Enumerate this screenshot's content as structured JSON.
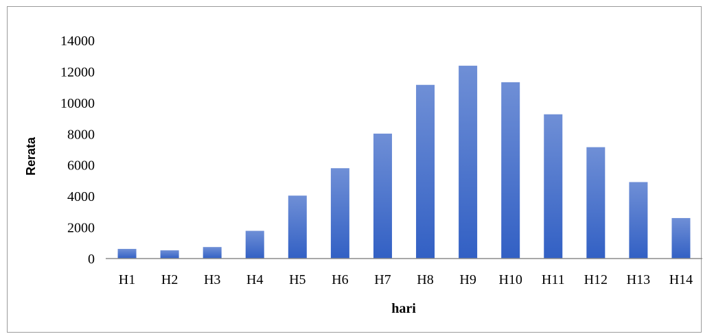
{
  "chart_data": {
    "type": "bar",
    "categories": [
      "H1",
      "H2",
      "H3",
      "H4",
      "H5",
      "H6",
      "H7",
      "H8",
      "H9",
      "H10",
      "H11",
      "H12",
      "H13",
      "H14"
    ],
    "values": [
      620,
      530,
      740,
      1780,
      4040,
      5800,
      8020,
      11150,
      12380,
      11320,
      9260,
      7150,
      4910,
      2600
    ],
    "xlabel": "hari",
    "ylabel": "Rerata",
    "ylim": [
      0,
      14000
    ],
    "yticks": [
      0,
      2000,
      4000,
      6000,
      8000,
      10000,
      12000,
      14000
    ],
    "grid": false,
    "legend": "none",
    "colors": {
      "bar_top": "#6f8fd6",
      "bar_bottom": "#3260c4",
      "axis": "#8c8c8c"
    }
  }
}
